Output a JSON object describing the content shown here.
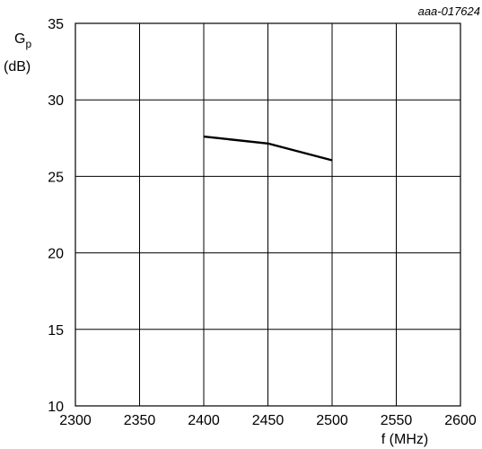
{
  "figure_id": "aaa-017624",
  "chart_data": {
    "type": "line",
    "y_label_main": "G",
    "y_label_sub": "p",
    "y_label_unit": "(dB)",
    "x_label": "f (MHz)",
    "xlim": [
      2300,
      2600
    ],
    "ylim": [
      10,
      35
    ],
    "x_ticks": [
      2300,
      2350,
      2400,
      2450,
      2500,
      2550,
      2600
    ],
    "y_ticks": [
      10,
      15,
      20,
      25,
      30,
      35
    ],
    "grid": true,
    "series": [
      {
        "x": [
          2400,
          2450,
          2500
        ],
        "y": [
          27.6,
          27.15,
          26.05
        ]
      }
    ]
  },
  "colors": {
    "line": "#000000",
    "grid": "#000000",
    "background": "#ffffff"
  }
}
